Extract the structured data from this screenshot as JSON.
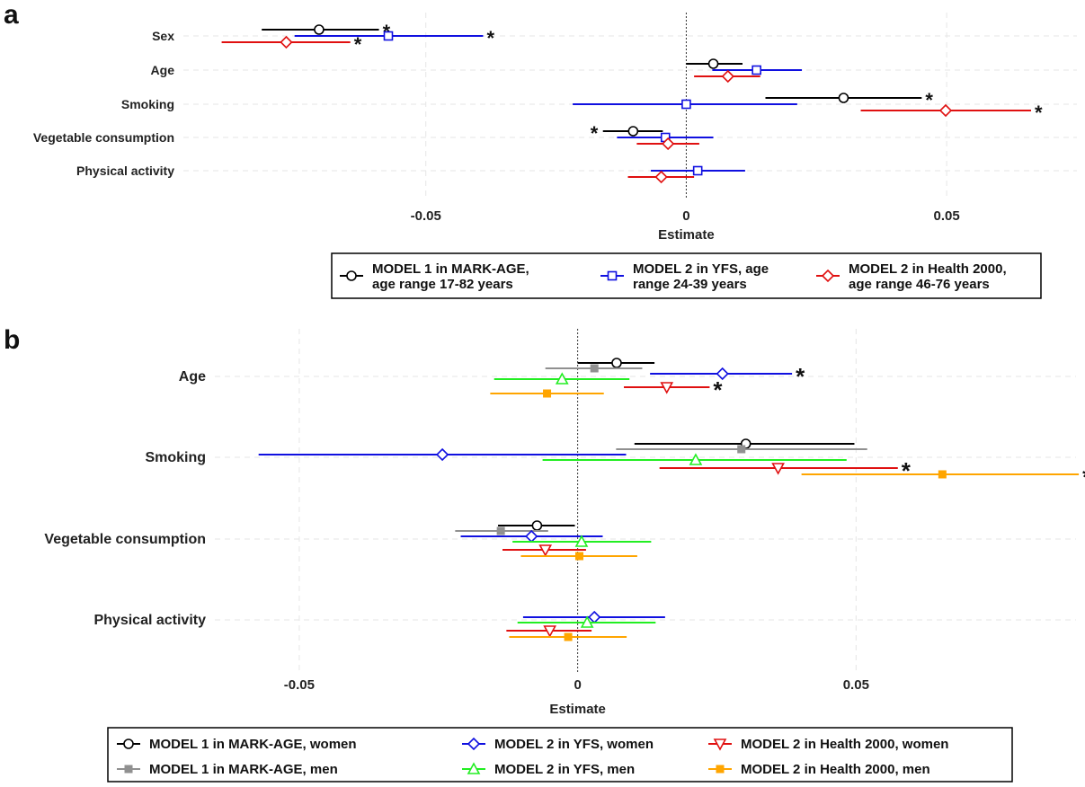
{
  "chart_data": [
    {
      "panel": "a",
      "type": "forest",
      "xlabel": "Estimate",
      "xticks": [
        -0.05,
        0,
        0.05
      ],
      "xtick_labels": [
        "-0.05",
        "0",
        "0.05"
      ],
      "xlim": [
        -0.1,
        0.075
      ],
      "categories": [
        "Sex",
        "Age",
        "Smoking",
        "Vegetable consumption",
        "Physical activity"
      ],
      "grid": true,
      "legend_position": "bottom",
      "series": [
        {
          "name": "MODEL 1 in MARK-AGE, age range 17-82 years",
          "legend_lines": [
            "MODEL 1 in MARK-AGE,",
            "age range 17-82 years"
          ],
          "color": "#000000",
          "marker": "circle",
          "points": [
            {
              "category": "Sex",
              "estimate": -0.0705,
              "lower": -0.0815,
              "upper": -0.059,
              "sig": true
            },
            {
              "category": "Age",
              "estimate": 0.0052,
              "lower": 0.0,
              "upper": 0.0108,
              "sig": false
            },
            {
              "category": "Smoking",
              "estimate": 0.0302,
              "lower": 0.0152,
              "upper": 0.0452,
              "sig": true
            },
            {
              "category": "Vegetable consumption",
              "estimate": -0.0102,
              "lower": -0.016,
              "upper": -0.0045,
              "sig": true
            }
          ]
        },
        {
          "name": "MODEL 2 in YFS, age range 24-39 years",
          "legend_lines": [
            "MODEL 2 in YFS, age",
            "range 24-39 years"
          ],
          "color": "#1010e0",
          "marker": "square",
          "points": [
            {
              "category": "Sex",
              "estimate": -0.0572,
              "lower": -0.0752,
              "upper": -0.039,
              "sig": true
            },
            {
              "category": "Age",
              "estimate": 0.0135,
              "lower": 0.005,
              "upper": 0.0222,
              "sig": false
            },
            {
              "category": "Smoking",
              "estimate": 0.0,
              "lower": -0.0218,
              "upper": 0.0213,
              "sig": false
            },
            {
              "category": "Vegetable consumption",
              "estimate": -0.004,
              "lower": -0.0133,
              "upper": 0.0052,
              "sig": false
            },
            {
              "category": "Physical activity",
              "estimate": 0.0022,
              "lower": -0.0068,
              "upper": 0.0113,
              "sig": false
            }
          ]
        },
        {
          "name": "MODEL 2 in Health 2000, age range 46-76 years",
          "legend_lines": [
            "MODEL 2 in Health 2000,",
            "age range 46-76 years"
          ],
          "color": "#e01010",
          "marker": "diamond",
          "points": [
            {
              "category": "Sex",
              "estimate": -0.0768,
              "lower": -0.0892,
              "upper": -0.0645,
              "sig": true
            },
            {
              "category": "Age",
              "estimate": 0.008,
              "lower": 0.0015,
              "upper": 0.0142,
              "sig": false
            },
            {
              "category": "Smoking",
              "estimate": 0.0498,
              "lower": 0.0335,
              "upper": 0.0662,
              "sig": true
            },
            {
              "category": "Vegetable consumption",
              "estimate": -0.0035,
              "lower": -0.0095,
              "upper": 0.0025,
              "sig": false
            },
            {
              "category": "Physical activity",
              "estimate": -0.0048,
              "lower": -0.0112,
              "upper": 0.0015,
              "sig": false
            }
          ]
        }
      ]
    },
    {
      "panel": "b",
      "type": "forest",
      "xlabel": "Estimate",
      "xticks": [
        -0.05,
        0,
        0.05
      ],
      "xtick_labels": [
        "-0.05",
        "0",
        "0.05"
      ],
      "xlim": [
        -0.101,
        0.0895
      ],
      "categories": [
        "Age",
        "Smoking",
        "Vegetable consumption",
        "Physical activity"
      ],
      "grid": true,
      "legend_position": "bottom",
      "series": [
        {
          "name": "MODEL 1 in MARK-AGE, women",
          "color": "#000000",
          "marker": "circle",
          "points": [
            {
              "category": "Age",
              "estimate": 0.007,
              "lower": 0.0,
              "upper": 0.0138,
              "sig": false
            },
            {
              "category": "Smoking",
              "estimate": 0.0302,
              "lower": 0.0102,
              "upper": 0.0497,
              "sig": false
            },
            {
              "category": "Vegetable consumption",
              "estimate": -0.0073,
              "lower": -0.0143,
              "upper": -0.0005,
              "sig": false
            }
          ]
        },
        {
          "name": "MODEL 1 in MARK-AGE, men",
          "color": "#909090",
          "marker": "filled-square",
          "points": [
            {
              "category": "Age",
              "estimate": 0.003,
              "lower": -0.0058,
              "upper": 0.0116,
              "sig": false
            },
            {
              "category": "Smoking",
              "estimate": 0.0294,
              "lower": 0.0069,
              "upper": 0.052,
              "sig": false
            },
            {
              "category": "Vegetable consumption",
              "estimate": -0.0138,
              "lower": -0.022,
              "upper": -0.0053,
              "sig": false
            }
          ]
        },
        {
          "name": "MODEL 2 in YFS, women",
          "color": "#1010e0",
          "marker": "diamond",
          "points": [
            {
              "category": "Age",
              "estimate": 0.026,
              "lower": 0.013,
              "upper": 0.0385,
              "sig": true
            },
            {
              "category": "Smoking",
              "estimate": -0.0243,
              "lower": -0.0573,
              "upper": 0.0087,
              "sig": false
            },
            {
              "category": "Vegetable consumption",
              "estimate": -0.0083,
              "lower": -0.021,
              "upper": 0.0045,
              "sig": false
            },
            {
              "category": "Physical activity",
              "estimate": 0.003,
              "lower": -0.0098,
              "upper": 0.0157,
              "sig": false
            }
          ]
        },
        {
          "name": "MODEL 2 in YFS, men",
          "color": "#22ee22",
          "marker": "triangle",
          "points": [
            {
              "category": "Age",
              "estimate": -0.0028,
              "lower": -0.015,
              "upper": 0.0093,
              "sig": false
            },
            {
              "category": "Smoking",
              "estimate": 0.0212,
              "lower": -0.0063,
              "upper": 0.0483,
              "sig": false
            },
            {
              "category": "Vegetable consumption",
              "estimate": 0.0007,
              "lower": -0.0117,
              "upper": 0.0132,
              "sig": false
            },
            {
              "category": "Physical activity",
              "estimate": 0.0017,
              "lower": -0.0108,
              "upper": 0.014,
              "sig": false
            }
          ]
        },
        {
          "name": "MODEL 2 in Health 2000, women",
          "color": "#e01010",
          "marker": "inverted-triangle",
          "points": [
            {
              "category": "Age",
              "estimate": 0.016,
              "lower": 0.0083,
              "upper": 0.0237,
              "sig": true
            },
            {
              "category": "Smoking",
              "estimate": 0.036,
              "lower": 0.0147,
              "upper": 0.0575,
              "sig": true
            },
            {
              "category": "Vegetable consumption",
              "estimate": -0.0058,
              "lower": -0.0135,
              "upper": 0.0015,
              "sig": false
            },
            {
              "category": "Physical activity",
              "estimate": -0.005,
              "lower": -0.0128,
              "upper": 0.0025,
              "sig": false
            }
          ]
        },
        {
          "name": "MODEL 2 in Health 2000, men",
          "color": "#ffa500",
          "marker": "filled-square",
          "points": [
            {
              "category": "Age",
              "estimate": -0.0055,
              "lower": -0.0157,
              "upper": 0.0047,
              "sig": false
            },
            {
              "category": "Smoking",
              "estimate": 0.0655,
              "lower": 0.0402,
              "upper": 0.09,
              "sig": true
            },
            {
              "category": "Vegetable consumption",
              "estimate": 0.0003,
              "lower": -0.0102,
              "upper": 0.0107,
              "sig": false
            },
            {
              "category": "Physical activity",
              "estimate": -0.0017,
              "lower": -0.0123,
              "upper": 0.0088,
              "sig": false
            }
          ]
        }
      ]
    }
  ]
}
